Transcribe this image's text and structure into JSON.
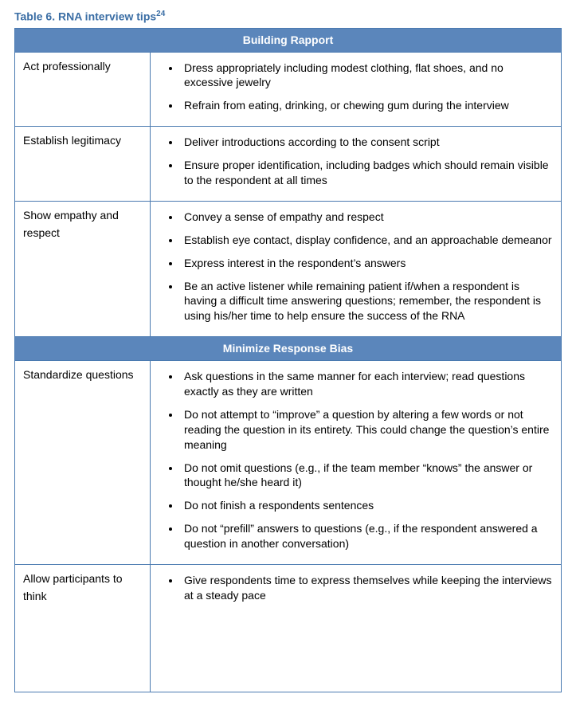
{
  "caption": {
    "text": "Table 6. RNA interview tips",
    "sup": "24"
  },
  "colors": {
    "header_bg": "#5b86bb",
    "header_fg": "#ffffff",
    "border": "#4a7ab0",
    "caption_color": "#3b6ea5"
  },
  "sections": [
    {
      "title": "Building Rapport",
      "rows": [
        {
          "label": "Act professionally",
          "bullets": [
            "Dress appropriately including modest clothing, flat shoes, and no excessive jewelry",
            "Refrain from eating, drinking, or chewing gum during the interview"
          ]
        },
        {
          "label": "Establish legitimacy",
          "bullets": [
            "Deliver introductions according to the consent script",
            "Ensure proper identification, including badges which should remain visible to the respondent at all times"
          ]
        },
        {
          "label": "Show empathy and respect",
          "bullets": [
            "Convey a sense of empathy and respect",
            "Establish eye contact, display confidence, and an approachable demeanor",
            "Express interest in the respondent’s answers",
            "Be an active listener while remaining patient if/when a respondent is having a difficult time answering questions; remember, the respondent is using his/her time to help ensure the success of the RNA"
          ]
        }
      ]
    },
    {
      "title": "Minimize Response Bias",
      "rows": [
        {
          "label": "Standardize questions",
          "bullets": [
            "Ask questions in the same manner for each interview; read questions exactly as they are written",
            "Do not attempt to “improve” a question by altering a few words or not reading the question in its entirety. This could change the question’s entire meaning",
            "Do not omit questions (e.g., if the team member “knows” the answer or thought he/she heard it)",
            "Do not finish a respondents sentences",
            "Do not “prefill” answers to questions (e.g., if the respondent answered a question in another conversation)"
          ]
        },
        {
          "label": "Allow participants to think",
          "bullets": [
            "Give respondents time to express themselves while keeping the interviews at a steady pace"
          ],
          "tall": true
        }
      ]
    }
  ]
}
